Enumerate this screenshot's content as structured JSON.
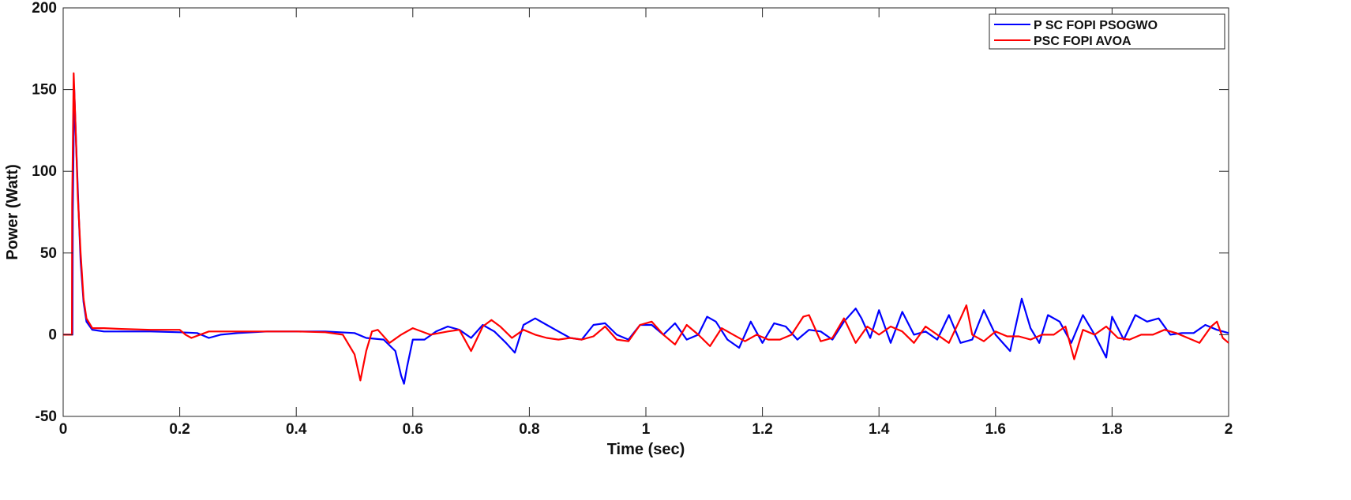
{
  "chart_data": {
    "type": "line",
    "title": "",
    "xlabel": "Time (sec)",
    "ylabel": "Power (Watt)",
    "xlim": [
      0,
      2
    ],
    "ylim": [
      -50,
      200
    ],
    "xticks": [
      0,
      0.2,
      0.4,
      0.6,
      0.8,
      1,
      1.2,
      1.4,
      1.6,
      1.8,
      2
    ],
    "xtick_labels": [
      "0",
      "0.2",
      "0.4",
      "0.6",
      "0.8",
      "1",
      "1.2",
      "1.4",
      "1.6",
      "1.8",
      "2"
    ],
    "yticks": [
      -50,
      0,
      50,
      100,
      150,
      200
    ],
    "ytick_labels": [
      "-50",
      "0",
      "50",
      "100",
      "150",
      "200"
    ],
    "grid": false,
    "legend_position": "top-right",
    "series": [
      {
        "name": "P SC FOPI PSOGWO",
        "color": "#0000ff",
        "x": [
          0,
          0.016,
          0.0165,
          0.019,
          0.022,
          0.026,
          0.03,
          0.035,
          0.04,
          0.05,
          0.07,
          0.1,
          0.15,
          0.2,
          0.23,
          0.25,
          0.27,
          0.3,
          0.35,
          0.4,
          0.45,
          0.5,
          0.52,
          0.55,
          0.57,
          0.58,
          0.585,
          0.59,
          0.6,
          0.62,
          0.64,
          0.66,
          0.68,
          0.7,
          0.72,
          0.74,
          0.76,
          0.775,
          0.79,
          0.81,
          0.83,
          0.85,
          0.87,
          0.89,
          0.91,
          0.93,
          0.95,
          0.97,
          0.99,
          1.01,
          1.03,
          1.05,
          1.07,
          1.09,
          1.105,
          1.12,
          1.14,
          1.16,
          1.18,
          1.2,
          1.22,
          1.24,
          1.26,
          1.28,
          1.3,
          1.32,
          1.34,
          1.36,
          1.37,
          1.385,
          1.4,
          1.42,
          1.44,
          1.46,
          1.48,
          1.5,
          1.52,
          1.54,
          1.56,
          1.58,
          1.6,
          1.625,
          1.645,
          1.66,
          1.675,
          1.69,
          1.71,
          1.73,
          1.75,
          1.77,
          1.79,
          1.8,
          1.82,
          1.84,
          1.86,
          1.88,
          1.9,
          1.92,
          1.94,
          1.96,
          1.98,
          2
        ],
        "y": [
          0,
          0,
          75,
          150,
          120,
          80,
          45,
          20,
          8,
          3,
          2,
          2,
          2,
          1.5,
          1,
          -2,
          0,
          1,
          2,
          2,
          2,
          1,
          -2,
          -3,
          -10,
          -25,
          -30,
          -20,
          -3,
          -3,
          2,
          5,
          3,
          -2,
          6,
          2,
          -5,
          -11,
          6,
          10,
          6,
          2,
          -2,
          -3,
          6,
          7,
          0,
          -3,
          6,
          6,
          0,
          7,
          -3,
          0,
          11,
          8,
          -3,
          -8,
          8,
          -5,
          7,
          5,
          -3,
          3,
          2,
          -3,
          8,
          16,
          10,
          -2,
          15,
          -5,
          14,
          0,
          2,
          -3,
          12,
          -5,
          -3,
          15,
          0,
          -10,
          22,
          4,
          -5,
          12,
          8,
          -5,
          12,
          0,
          -14,
          11,
          -3,
          12,
          8,
          10,
          0,
          1,
          1,
          6,
          3,
          1
        ]
      },
      {
        "name": "PSC FOPI AVOA",
        "color": "#ff0000",
        "x": [
          0,
          0.015,
          0.0155,
          0.018,
          0.021,
          0.025,
          0.03,
          0.035,
          0.04,
          0.05,
          0.07,
          0.1,
          0.15,
          0.2,
          0.21,
          0.22,
          0.25,
          0.3,
          0.35,
          0.4,
          0.45,
          0.48,
          0.5,
          0.51,
          0.52,
          0.53,
          0.54,
          0.56,
          0.58,
          0.6,
          0.63,
          0.66,
          0.68,
          0.7,
          0.72,
          0.735,
          0.75,
          0.77,
          0.79,
          0.81,
          0.83,
          0.85,
          0.87,
          0.89,
          0.91,
          0.93,
          0.95,
          0.97,
          0.99,
          1.01,
          1.03,
          1.05,
          1.07,
          1.09,
          1.11,
          1.13,
          1.15,
          1.17,
          1.19,
          1.21,
          1.23,
          1.25,
          1.27,
          1.28,
          1.3,
          1.32,
          1.34,
          1.36,
          1.38,
          1.4,
          1.42,
          1.44,
          1.46,
          1.48,
          1.5,
          1.52,
          1.54,
          1.55,
          1.56,
          1.58,
          1.6,
          1.62,
          1.64,
          1.66,
          1.68,
          1.7,
          1.72,
          1.735,
          1.75,
          1.77,
          1.79,
          1.81,
          1.83,
          1.85,
          1.87,
          1.89,
          1.91,
          1.93,
          1.95,
          1.97,
          1.98,
          1.99,
          2
        ],
        "y": [
          0,
          0,
          80,
          160,
          130,
          85,
          50,
          22,
          10,
          4,
          4,
          3.5,
          3,
          3,
          0,
          -2,
          2,
          2,
          2,
          2,
          1.5,
          0,
          -12,
          -28,
          -10,
          2,
          3,
          -5,
          0,
          4,
          0,
          2,
          3,
          -10,
          5,
          9,
          5,
          -2,
          3,
          0,
          -2,
          -3,
          -2,
          -3,
          -1,
          5,
          -3,
          -4,
          6,
          8,
          0,
          -6,
          6,
          0,
          -7,
          4,
          0,
          -4,
          0,
          -3,
          -3,
          0,
          11,
          12,
          -4,
          -2,
          10,
          -5,
          5,
          0,
          5,
          2,
          -5,
          5,
          0,
          -5,
          10,
          18,
          0,
          -4,
          2,
          -1,
          -1,
          -3,
          0,
          0,
          5,
          -15,
          3,
          0,
          5,
          -2,
          -3,
          0,
          0,
          3,
          1,
          -2,
          -5,
          5,
          8,
          -2,
          -5
        ]
      }
    ]
  }
}
